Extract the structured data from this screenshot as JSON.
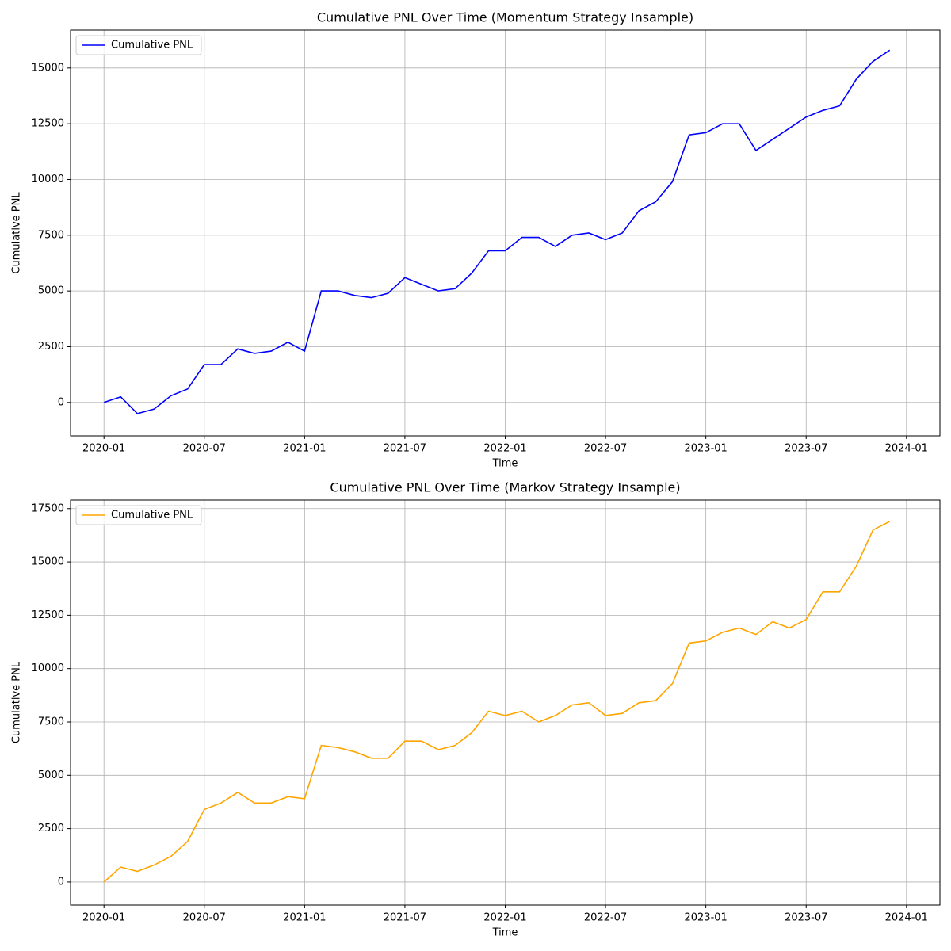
{
  "chart_data": [
    {
      "type": "line",
      "title": "Cumulative PNL Over Time (Momentum Strategy Insample)",
      "xlabel": "Time",
      "ylabel": "Cumulative PNL",
      "x": [
        "2020-01",
        "2020-02",
        "2020-03",
        "2020-04",
        "2020-05",
        "2020-06",
        "2020-07",
        "2020-08",
        "2020-09",
        "2020-10",
        "2020-11",
        "2020-12",
        "2021-01",
        "2021-02",
        "2021-03",
        "2021-04",
        "2021-05",
        "2021-06",
        "2021-07",
        "2021-08",
        "2021-09",
        "2021-10",
        "2021-11",
        "2021-12",
        "2022-01",
        "2022-02",
        "2022-03",
        "2022-04",
        "2022-05",
        "2022-06",
        "2022-07",
        "2022-08",
        "2022-09",
        "2022-10",
        "2022-11",
        "2022-12",
        "2023-01",
        "2023-02",
        "2023-03",
        "2023-04",
        "2023-05",
        "2023-06",
        "2023-07",
        "2023-08",
        "2023-09",
        "2023-10",
        "2023-11",
        "2023-12"
      ],
      "series": [
        {
          "name": "Cumulative PNL",
          "color": "#0000ff",
          "values": [
            0,
            250,
            -500,
            -300,
            300,
            600,
            1700,
            1700,
            2400,
            2200,
            2300,
            2700,
            2300,
            5000,
            5000,
            4800,
            4700,
            4900,
            5600,
            5300,
            5000,
            5100,
            5800,
            6800,
            6800,
            7400,
            7400,
            7000,
            7500,
            7600,
            7300,
            7600,
            8600,
            9000,
            9900,
            12000,
            12100,
            12500,
            12500,
            11300,
            11800,
            12300,
            12800,
            13100,
            13300,
            14500,
            15300,
            15800
          ]
        }
      ],
      "xlim": [
        "2019-11",
        "2024-03"
      ],
      "xticks": [
        "2020-01",
        "2020-07",
        "2021-01",
        "2021-07",
        "2022-01",
        "2022-07",
        "2023-01",
        "2023-07",
        "2024-01"
      ],
      "ylim": [
        -1500,
        16700
      ],
      "yticks": [
        0,
        2500,
        5000,
        7500,
        10000,
        12500,
        15000
      ],
      "grid": true,
      "legend": "upper left"
    },
    {
      "type": "line",
      "title": "Cumulative PNL Over Time (Markov Strategy Insample)",
      "xlabel": "Time",
      "ylabel": "Cumulative PNL",
      "x": [
        "2020-01",
        "2020-02",
        "2020-03",
        "2020-04",
        "2020-05",
        "2020-06",
        "2020-07",
        "2020-08",
        "2020-09",
        "2020-10",
        "2020-11",
        "2020-12",
        "2021-01",
        "2021-02",
        "2021-03",
        "2021-04",
        "2021-05",
        "2021-06",
        "2021-07",
        "2021-08",
        "2021-09",
        "2021-10",
        "2021-11",
        "2021-12",
        "2022-01",
        "2022-02",
        "2022-03",
        "2022-04",
        "2022-05",
        "2022-06",
        "2022-07",
        "2022-08",
        "2022-09",
        "2022-10",
        "2022-11",
        "2022-12",
        "2023-01",
        "2023-02",
        "2023-03",
        "2023-04",
        "2023-05",
        "2023-06",
        "2023-07",
        "2023-08",
        "2023-09",
        "2023-10",
        "2023-11",
        "2023-12"
      ],
      "series": [
        {
          "name": "Cumulative PNL",
          "color": "#ffa500",
          "values": [
            0,
            700,
            500,
            800,
            1200,
            1900,
            3400,
            3700,
            4200,
            3700,
            3700,
            4000,
            3900,
            6400,
            6300,
            6100,
            5800,
            5800,
            6600,
            6600,
            6200,
            6400,
            7000,
            8000,
            7800,
            8000,
            7500,
            7800,
            8300,
            8400,
            7800,
            7900,
            8400,
            8500,
            9300,
            11200,
            11300,
            11700,
            11900,
            11600,
            12200,
            11900,
            12300,
            13600,
            13600,
            14800,
            16500,
            16900
          ]
        }
      ],
      "xlim": [
        "2019-11",
        "2024-03"
      ],
      "xticks": [
        "2020-01",
        "2020-07",
        "2021-01",
        "2021-07",
        "2022-01",
        "2022-07",
        "2023-01",
        "2023-07",
        "2024-01"
      ],
      "ylim": [
        -1080,
        17900
      ],
      "yticks": [
        0,
        2500,
        5000,
        7500,
        10000,
        12500,
        15000,
        17500
      ],
      "grid": true,
      "legend": "upper left"
    }
  ]
}
